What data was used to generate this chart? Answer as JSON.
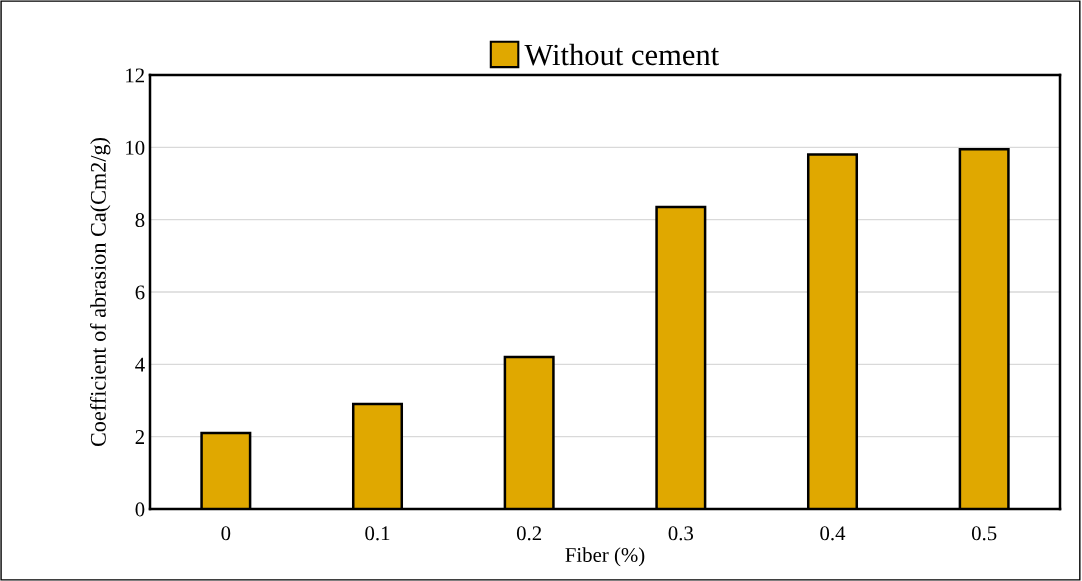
{
  "chart_data": {
    "type": "bar",
    "xlabel": "Fiber (%)",
    "ylabel": "Coefficient of abrasion Ca(Cm2/g)",
    "categories": [
      "0",
      "0.1",
      "0.2",
      "0.3",
      "0.4",
      "0.5"
    ],
    "series": [
      {
        "name": "Without cement",
        "color": "#e0a800",
        "values": [
          2.1,
          2.9,
          4.2,
          8.35,
          9.8,
          9.95
        ]
      }
    ],
    "ylim": [
      0,
      12
    ],
    "yticks": [
      0,
      2,
      4,
      6,
      8,
      10,
      12
    ],
    "grid": "y",
    "legend": "top"
  }
}
